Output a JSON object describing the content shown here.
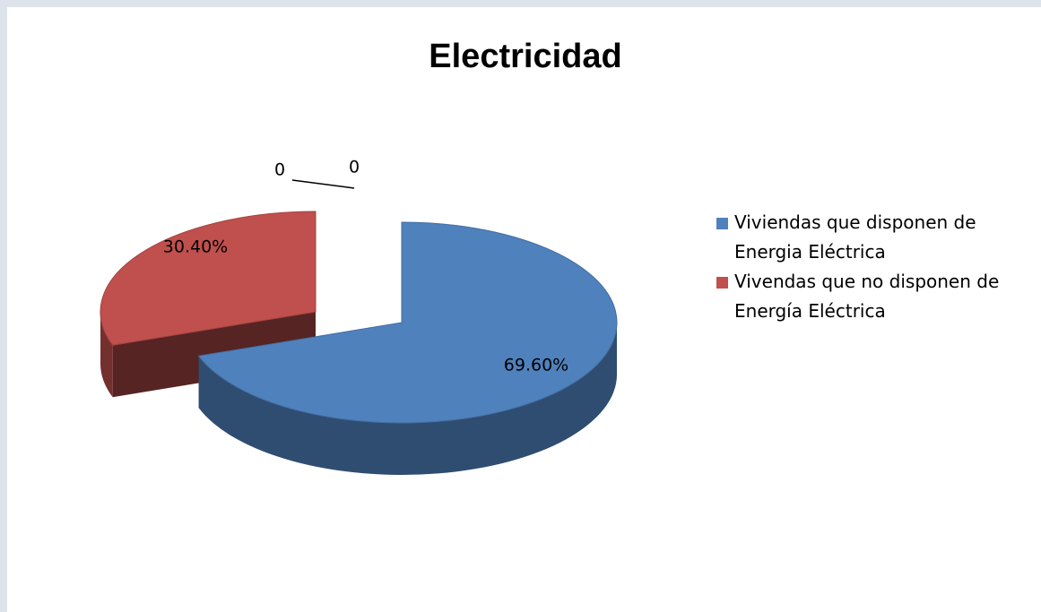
{
  "chart_data": {
    "type": "pie",
    "title": "Electricidad",
    "categories": [
      "Viviendas que disponen de Energia Eléctrica",
      "Vivendas que no disponen de Energía Eléctrica",
      null,
      null
    ],
    "values": [
      69.6,
      30.4,
      0,
      0
    ],
    "value_labels": [
      "69.60%",
      "30.40%",
      "0",
      "0"
    ],
    "colors": [
      "#4f81bd",
      "#c0504d",
      "#9bbb59",
      "#8064a2"
    ],
    "legend": "right"
  }
}
